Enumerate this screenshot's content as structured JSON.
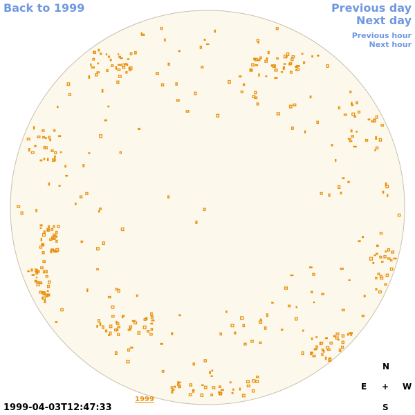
{
  "nav": {
    "back": "Back to 1999",
    "previous_day": "Previous day",
    "next_day": "Next day",
    "previous_hour": "Previous hour",
    "next_hour": "Next hour"
  },
  "timestamp": "1999-04-03T12:47:33",
  "year_link": "1999",
  "compass": {
    "north": "N",
    "east": "E",
    "center": "+",
    "west": "W",
    "south": "S"
  }
}
